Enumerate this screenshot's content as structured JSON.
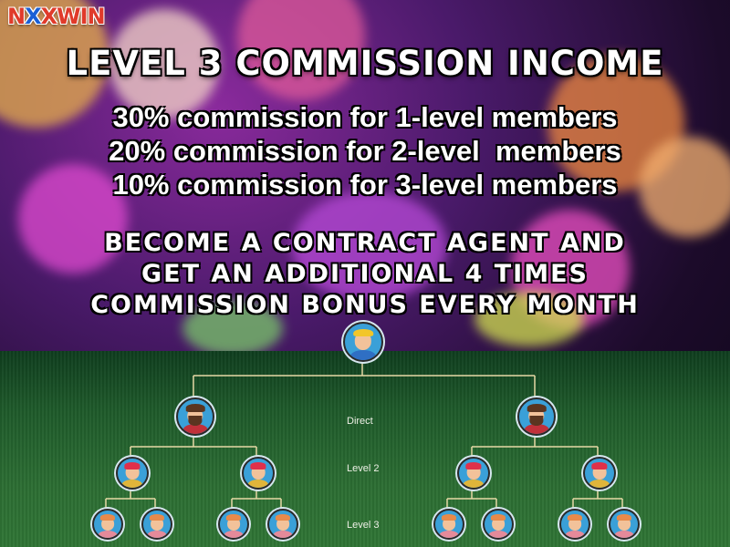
{
  "logo": {
    "part1": "N",
    "part2": "X",
    "part3": "XWIN"
  },
  "title": "LEVEL 3 COMMISSION INCOME",
  "rates": [
    "30% commission for 1-level members",
    "20% commission for 2-level  members",
    "10% commission for 3-level members"
  ],
  "promo": [
    "BECOME A CONTRACT AGENT AND",
    "GET AN ADDITIONAL 4 TIMES",
    "COMMISSION BONUS EVERY MONTH"
  ],
  "tree_labels": {
    "direct": "Direct",
    "level2": "Level 2",
    "level3": "Level 3"
  },
  "colors": {
    "avatar_bg": "#3aa0d8",
    "line": "#e7d9a6",
    "logo_red": "#e03a2a",
    "logo_blue": "#1a5fd6"
  },
  "avatars": {
    "top": "avatar-yellow-cap-icon",
    "direct": "avatar-bearded-man-icon",
    "level2": "avatar-red-cap-icon",
    "level3": "avatar-woman-icon"
  }
}
